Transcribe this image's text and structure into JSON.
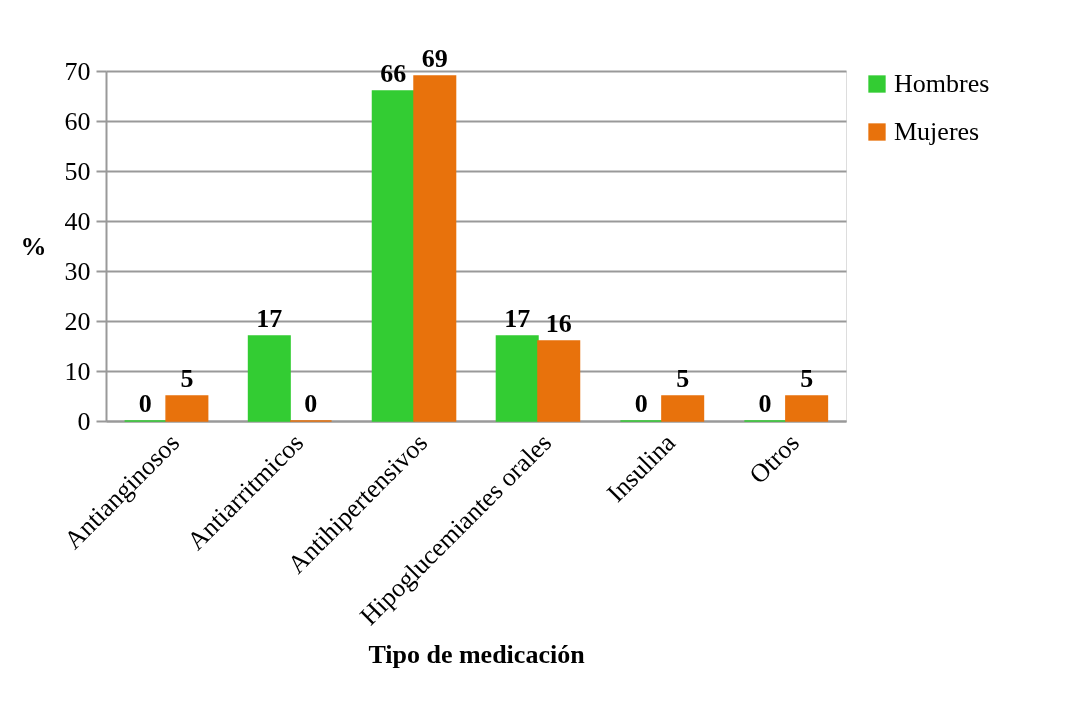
{
  "chart_data": {
    "type": "bar",
    "xlabel": "Tipo de medicación",
    "ylabel": "%",
    "categories": [
      "Antianginosos",
      "Antiarritmicos",
      "Antihipertensivos",
      "Hipoglucemiantes orales",
      "Insulina",
      "Otros"
    ],
    "series": [
      {
        "name": "Hombres",
        "color": "#33cc33",
        "values": [
          0,
          17,
          66,
          17,
          0,
          0
        ]
      },
      {
        "name": "Mujeres",
        "color": "#e8720c",
        "values": [
          5,
          0,
          69,
          16,
          5,
          5
        ]
      }
    ],
    "ylim": [
      0,
      70
    ],
    "yticks": [
      0,
      10,
      20,
      30,
      40,
      50,
      60,
      70
    ],
    "grid": "y",
    "legend": "right",
    "data_labels": true
  }
}
